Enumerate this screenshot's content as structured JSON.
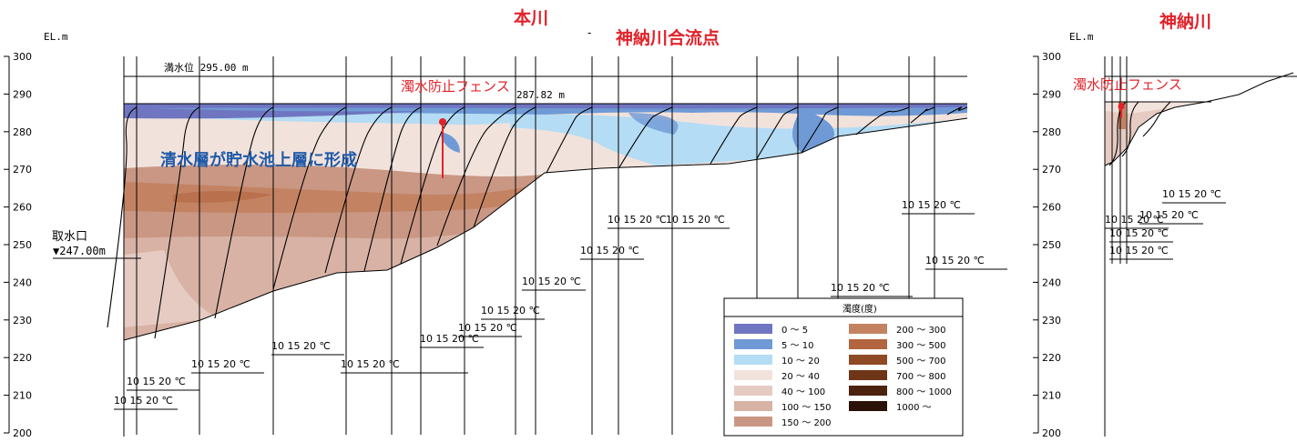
{
  "main": {
    "el_label": "EL.m",
    "yaxis_ticks": [
      300,
      290,
      280,
      270,
      260,
      250,
      240,
      230,
      220,
      210,
      200
    ],
    "title_honsen": "本川",
    "title_dash": "-",
    "title_confluence": "神納川合流点",
    "full_water_level": "満水位 295.00 m",
    "current_level": "287.82 m",
    "turbidity_fence": "濁水防止フェンス",
    "clear_layer": "清水層が貯水池上層に形成",
    "intake_label": "取水口",
    "intake_level": "▼247.00m"
  },
  "side": {
    "el_label": "EL.m",
    "title": "神納川",
    "turbidity_fence": "濁水防止フェンス",
    "yaxis_ticks": [
      300,
      290,
      280,
      270,
      260,
      250,
      240,
      230,
      220,
      210,
      200
    ]
  },
  "temp_scale_label": "10  15  20 ℃",
  "legend": {
    "title": "濁度(度)",
    "items": [
      {
        "label": "0 ～ 5",
        "color": "#6f75c0"
      },
      {
        "label": "5 ～ 10",
        "color": "#6f9ad6"
      },
      {
        "label": "10 ～ 20",
        "color": "#b4dcf4"
      },
      {
        "label": "20 ～ 40",
        "color": "#f2e2dc"
      },
      {
        "label": "40 ～ 100",
        "color": "#e6cbc2"
      },
      {
        "label": "100 ～ 150",
        "color": "#d8b2a4"
      },
      {
        "label": "150 ～ 200",
        "color": "#c99784"
      },
      {
        "label": "200 ～ 300",
        "color": "#c38363"
      },
      {
        "label": "300 ～ 500",
        "color": "#b2653f"
      },
      {
        "label": "500 ～ 700",
        "color": "#8d4a24"
      },
      {
        "label": "700 ～ 800",
        "color": "#6e3517"
      },
      {
        "label": "800 ～ 1000",
        "color": "#4a220d"
      },
      {
        "label": "1000 ～",
        "color": "#2a1208"
      }
    ]
  }
}
